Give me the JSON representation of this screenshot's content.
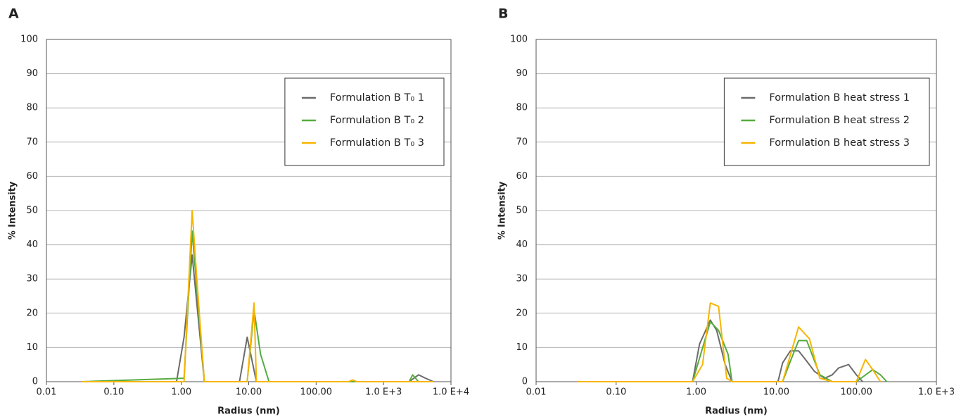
{
  "chart_data": [
    {
      "type": "line",
      "panel": "A",
      "x_label": "Radius (nm)",
      "y_label": "% Intensity",
      "xlog": true,
      "grid": true,
      "legend": "upper right",
      "xlim": [
        0.01,
        10000
      ],
      "xticks": [
        0.01,
        {
          "value": 0.1,
          "label": "0.10"
        },
        {
          "value": 1,
          "label": "1.00"
        },
        {
          "value": 10,
          "label": "10.00"
        },
        {
          "value": 100,
          "label": "100.00"
        },
        {
          "value": 1000,
          "label": "1.0 E+3"
        },
        {
          "value": 10000,
          "label": "1.0 E+4"
        }
      ],
      "ylim": [
        0,
        100
      ],
      "yticks": [
        0,
        10,
        20,
        30,
        40,
        50,
        60,
        70,
        80,
        90,
        100
      ],
      "series": [
        {
          "name": "Formulation B T₀ 1",
          "color": "#6b6b6b",
          "x": [
            0.033,
            0.85,
            1.1,
            1.45,
            2.2,
            7.3,
            9.5,
            13,
            20,
            2400,
            3300,
            4200,
            5500
          ],
          "values": [
            0,
            0,
            13,
            37,
            0,
            0,
            13,
            0,
            0,
            0,
            2,
            1,
            0
          ]
        },
        {
          "name": "Formulation B T₀ 2",
          "color": "#55ac3e",
          "x": [
            0.033,
            1.1,
            1.45,
            2.2,
            9.5,
            12,
            15,
            20,
            2400,
            2700,
            3300,
            5500
          ],
          "values": [
            0,
            1,
            44,
            0,
            0,
            21,
            8,
            0,
            0,
            2,
            0,
            0
          ]
        },
        {
          "name": "Formulation B T₀ 3",
          "color": "#f7b500",
          "x": [
            0.033,
            1.1,
            1.45,
            1.7,
            2.2,
            9.5,
            12,
            13,
            300,
            350,
            400,
            3300,
            5500
          ],
          "values": [
            0,
            0,
            50,
            30,
            0,
            0,
            23,
            0,
            0,
            0.5,
            0,
            0,
            0
          ]
        }
      ]
    },
    {
      "type": "line",
      "panel": "B",
      "x_label": "Radius (nm)",
      "y_label": "% Intensity",
      "xlog": true,
      "grid": true,
      "legend": "upper right",
      "xlim": [
        0.01,
        1000
      ],
      "xticks": [
        0.01,
        {
          "value": 0.1,
          "label": "0.10"
        },
        {
          "value": 1,
          "label": "1.00"
        },
        {
          "value": 10,
          "label": "10.00"
        },
        {
          "value": 100,
          "label": "100.00"
        },
        {
          "value": 1000,
          "label": "1.0 E+3"
        }
      ],
      "ylim": [
        0,
        100
      ],
      "yticks": [
        0,
        10,
        20,
        30,
        40,
        50,
        60,
        70,
        80,
        90,
        100
      ],
      "series": [
        {
          "name": "Formulation B heat stress 1",
          "color": "#6b6b6b",
          "x": [
            0.033,
            0.9,
            1.1,
            1.5,
            1.8,
            2.3,
            2.8,
            10.5,
            12,
            15,
            19,
            24,
            30,
            40,
            50,
            60,
            80,
            100,
            120
          ],
          "values": [
            0,
            0,
            11,
            18,
            15,
            5,
            0,
            0,
            5.5,
            9,
            9,
            6,
            3,
            1,
            2,
            4,
            5,
            2,
            0
          ]
        },
        {
          "name": "Formulation B heat stress 2",
          "color": "#55ac3e",
          "x": [
            0.033,
            0.9,
            1.5,
            1.9,
            2.5,
            2.8,
            12,
            15,
            19,
            24,
            35,
            50,
            100,
            160,
            200,
            240
          ],
          "values": [
            0,
            0,
            17.5,
            15,
            8,
            0,
            0,
            6,
            12,
            12,
            2,
            0,
            0,
            3.5,
            2,
            0
          ]
        },
        {
          "name": "Formulation B heat stress 3",
          "color": "#f7b500",
          "x": [
            0.033,
            0.9,
            1.2,
            1.5,
            1.9,
            2.4,
            2.8,
            12,
            19,
            26,
            35,
            50,
            100,
            130,
            160,
            200
          ],
          "values": [
            0,
            0,
            5,
            23,
            22,
            1,
            0,
            0,
            16,
            12.5,
            1,
            0,
            0,
            6.5,
            3.5,
            0
          ]
        }
      ]
    }
  ]
}
